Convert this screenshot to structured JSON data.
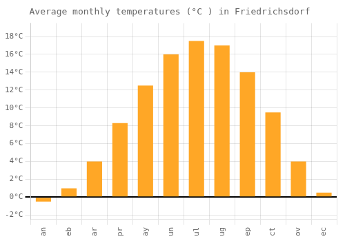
{
  "chart_data": {
    "type": "bar",
    "title": "Average monthly temperatures (°C ) in Friedrichsdorf",
    "categories": [
      "an",
      "eb",
      "ar",
      "pr",
      "ay",
      "un",
      "ul",
      "ug",
      "ep",
      "ct",
      "ov",
      "ec"
    ],
    "values": [
      -0.5,
      1.0,
      4.0,
      8.3,
      12.5,
      16.0,
      17.5,
      17.0,
      14.0,
      9.5,
      4.0,
      0.5
    ],
    "color": "#FFA726",
    "ylim": [
      -2.5,
      19.5
    ],
    "yticks": [
      {
        "value": -2,
        "label": "-2°C"
      },
      {
        "value": 0,
        "label": "0°C"
      },
      {
        "value": 2,
        "label": "2°C"
      },
      {
        "value": 4,
        "label": "4°C"
      },
      {
        "value": 6,
        "label": "6°C"
      },
      {
        "value": 8,
        "label": "8°C"
      },
      {
        "value": 10,
        "label": "10°C"
      },
      {
        "value": 12,
        "label": "12°C"
      },
      {
        "value": 14,
        "label": "14°C"
      },
      {
        "value": 16,
        "label": "16°C"
      },
      {
        "value": 18,
        "label": "18°C"
      }
    ],
    "grid": true
  }
}
